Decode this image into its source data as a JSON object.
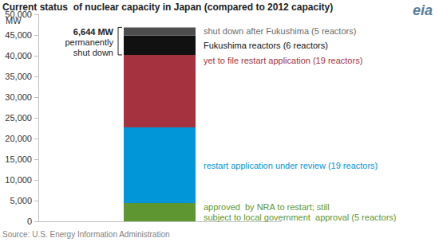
{
  "chart_data": {
    "type": "bar",
    "title": "Current status  of nuclear capacity in Japan (compared to 2012 capacity)",
    "y_label": "MW",
    "source": "Source: U.S. Energy Information Administration",
    "logo": "eia",
    "categories": [
      null
    ],
    "stacked": true,
    "grid": false,
    "series": [
      {
        "name": "approved  by NRA to restart; still\nsubject to local government  approval (5 reactors)",
        "color": "#5e9732",
        "values": [
          4410
        ]
      },
      {
        "name": "restart application under review (19 reactors)",
        "color": "#0096d7",
        "values": [
          18290
        ]
      },
      {
        "name": "yet to file restart application (19 reactors)",
        "color": "#a5333f",
        "values": [
          17500
        ]
      },
      {
        "name": "Fukushima reactors (6 reactors)",
        "color": "#111111",
        "values": [
          4696
        ]
      },
      {
        "name": "shut down after Fukushima (5 reactors)",
        "color": "#4d4d4d",
        "values": [
          1948
        ]
      }
    ],
    "annotation": {
      "value": 6644,
      "label": "6,644 MW",
      "text": "permanently\nshut down"
    },
    "ylim": [
      0,
      50000
    ],
    "yticks": [
      0,
      {
        "value": 5000,
        "label": "5,000"
      },
      {
        "value": 10000,
        "label": "10,000"
      },
      {
        "value": 15000,
        "label": "15,000"
      },
      {
        "value": 20000,
        "label": "20,000"
      },
      {
        "value": 25000,
        "label": "25,000"
      },
      {
        "value": 30000,
        "label": "30,000"
      },
      {
        "value": 35000,
        "label": "35,000"
      },
      {
        "value": 40000,
        "label": "40,000"
      },
      {
        "value": 45000,
        "label": "45,000"
      },
      {
        "value": 50000,
        "label": "50,000"
      }
    ]
  }
}
